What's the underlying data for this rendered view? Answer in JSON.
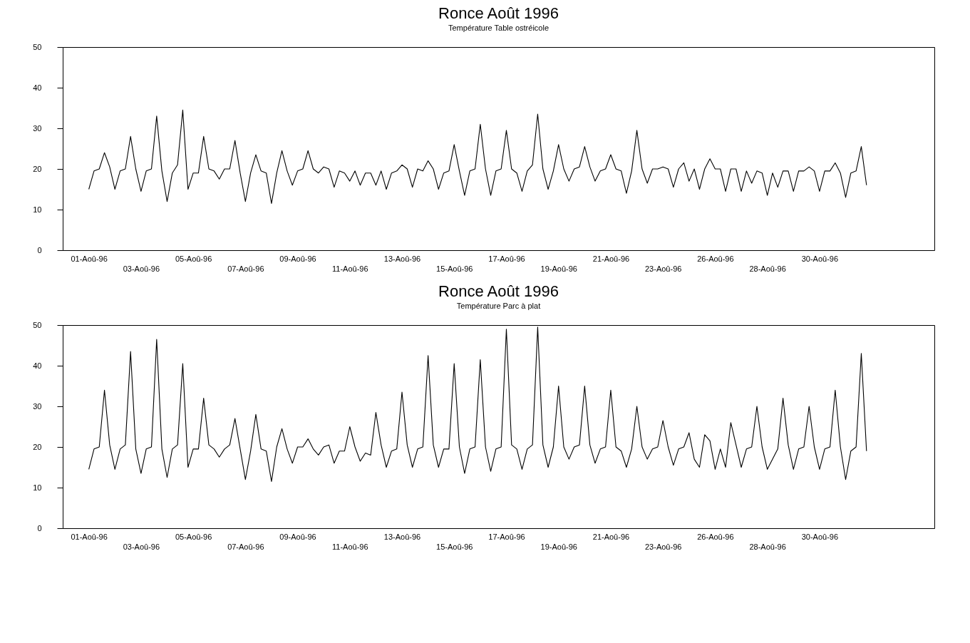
{
  "chart_data": [
    {
      "type": "line",
      "title": "Ronce Août 1996",
      "subtitle": "Température Table ostréicole",
      "color": "#000000",
      "ylim": [
        0,
        50
      ],
      "yticks": [
        0,
        10,
        20,
        30,
        40,
        50
      ],
      "categories": [
        null,
        null,
        null,
        null,
        null,
        "01-Aoû-96",
        null,
        null,
        null,
        null,
        null,
        null,
        null,
        null,
        null,
        "03-Aoû-96",
        null,
        null,
        null,
        null,
        null,
        null,
        null,
        null,
        null,
        "05-Aoû-96",
        null,
        null,
        null,
        null,
        null,
        null,
        null,
        null,
        null,
        "07-Aoû-96",
        null,
        null,
        null,
        null,
        null,
        null,
        null,
        null,
        null,
        "09-Aoû-96",
        null,
        null,
        null,
        null,
        null,
        null,
        null,
        null,
        null,
        "11-Aoû-96",
        null,
        null,
        null,
        null,
        null,
        null,
        null,
        null,
        null,
        "13-Aoû-96",
        null,
        null,
        null,
        null,
        null,
        null,
        null,
        null,
        null,
        "15-Aoû-96",
        null,
        null,
        null,
        null,
        null,
        null,
        null,
        null,
        null,
        "17-Aoû-96",
        null,
        null,
        null,
        null,
        null,
        null,
        null,
        null,
        null,
        "19-Aoû-96",
        null,
        null,
        null,
        null,
        null,
        null,
        null,
        null,
        null,
        "21-Aoû-96",
        null,
        null,
        null,
        null,
        null,
        null,
        null,
        null,
        null,
        "23-Aoû-96",
        null,
        null,
        null,
        null,
        null,
        null,
        null,
        null,
        null,
        "26-Aoû-96",
        null,
        null,
        null,
        null,
        null,
        null,
        null,
        null,
        null,
        "28-Aoû-96",
        null,
        null,
        null,
        null,
        null,
        null,
        null,
        null,
        null,
        "30-Aoû-96",
        null,
        null,
        null,
        null,
        null,
        null,
        null,
        null,
        null,
        null,
        null,
        null,
        null,
        null,
        null,
        null,
        null,
        null,
        null,
        null,
        null,
        null
      ],
      "values": [
        null,
        null,
        null,
        null,
        null,
        15,
        19.5,
        20,
        24,
        20.5,
        15,
        19.5,
        20,
        28,
        20,
        14.5,
        19.5,
        20,
        33,
        19.5,
        12,
        19,
        21,
        34.5,
        15,
        19,
        19,
        28,
        20,
        19.5,
        17.5,
        20,
        20,
        27,
        19,
        12,
        19,
        23.5,
        19.5,
        19,
        11.5,
        19,
        24.5,
        19.5,
        16,
        19.5,
        20,
        24.5,
        20,
        19,
        20.5,
        20,
        15.5,
        19.5,
        19,
        17,
        19.5,
        16,
        19,
        19,
        16,
        19.5,
        15,
        19,
        19.5,
        21,
        20,
        15.5,
        20,
        19.5,
        22,
        20,
        15,
        19,
        19.5,
        26,
        19.5,
        13.5,
        19.5,
        20,
        31,
        20,
        13.5,
        19.5,
        20,
        29.5,
        20,
        19,
        14.5,
        19.5,
        21,
        33.5,
        20,
        15,
        19.5,
        26,
        20,
        17,
        20,
        20.5,
        25.5,
        20.5,
        17,
        19.5,
        20,
        23.5,
        20,
        19.5,
        14,
        19.5,
        29.5,
        20,
        16.5,
        20,
        20,
        20.5,
        20,
        15.5,
        20,
        21.5,
        17,
        20,
        15,
        20,
        22.5,
        20,
        20,
        14.5,
        20,
        20,
        14.5,
        19.5,
        16.5,
        19.5,
        19,
        13.5,
        19,
        15.5,
        19.5,
        19.5,
        14.5,
        19.5,
        19.5,
        20.5,
        19.5,
        14.5,
        19.5,
        19.5,
        21.5,
        19,
        13,
        19,
        19.5,
        25.5,
        16,
        null,
        null,
        null,
        null,
        null,
        null,
        null,
        null,
        null,
        null,
        null,
        null,
        null
      ]
    },
    {
      "type": "line",
      "title": "Ronce Août 1996",
      "subtitle": "Température Parc à plat",
      "color": "#000000",
      "ylim": [
        0,
        50
      ],
      "yticks": [
        0,
        10,
        20,
        30,
        40,
        50
      ],
      "categories": [
        null,
        null,
        null,
        null,
        null,
        "01-Aoû-96",
        null,
        null,
        null,
        null,
        null,
        null,
        null,
        null,
        null,
        "03-Aoû-96",
        null,
        null,
        null,
        null,
        null,
        null,
        null,
        null,
        null,
        "05-Aoû-96",
        null,
        null,
        null,
        null,
        null,
        null,
        null,
        null,
        null,
        "07-Aoû-96",
        null,
        null,
        null,
        null,
        null,
        null,
        null,
        null,
        null,
        "09-Aoû-96",
        null,
        null,
        null,
        null,
        null,
        null,
        null,
        null,
        null,
        "11-Aoû-96",
        null,
        null,
        null,
        null,
        null,
        null,
        null,
        null,
        null,
        "13-Aoû-96",
        null,
        null,
        null,
        null,
        null,
        null,
        null,
        null,
        null,
        "15-Aoû-96",
        null,
        null,
        null,
        null,
        null,
        null,
        null,
        null,
        null,
        "17-Aoû-96",
        null,
        null,
        null,
        null,
        null,
        null,
        null,
        null,
        null,
        "19-Aoû-96",
        null,
        null,
        null,
        null,
        null,
        null,
        null,
        null,
        null,
        "21-Aoû-96",
        null,
        null,
        null,
        null,
        null,
        null,
        null,
        null,
        null,
        "23-Aoû-96",
        null,
        null,
        null,
        null,
        null,
        null,
        null,
        null,
        null,
        "26-Aoû-96",
        null,
        null,
        null,
        null,
        null,
        null,
        null,
        null,
        null,
        "28-Aoû-96",
        null,
        null,
        null,
        null,
        null,
        null,
        null,
        null,
        null,
        "30-Aoû-96",
        null,
        null,
        null,
        null,
        null,
        null,
        null,
        null,
        null,
        null,
        null,
        null,
        null,
        null,
        null,
        null,
        null,
        null,
        null,
        null,
        null,
        null
      ],
      "values": [
        null,
        null,
        null,
        null,
        null,
        14.5,
        19.5,
        20,
        34,
        20.5,
        14.5,
        19.5,
        20.5,
        43.5,
        19.5,
        13.5,
        19.5,
        20,
        46.5,
        19.5,
        12.5,
        19.5,
        20.5,
        40.5,
        15,
        19.5,
        19.5,
        32,
        20.5,
        19.5,
        17.5,
        19.5,
        20.5,
        27,
        19.5,
        12,
        19,
        28,
        19.5,
        19,
        11.5,
        20,
        24.5,
        19.5,
        16,
        20,
        20,
        22,
        19.5,
        18,
        20,
        20.5,
        16,
        19,
        19,
        25,
        20,
        16.5,
        18.5,
        18,
        28.5,
        20.5,
        15,
        19,
        19.5,
        33.5,
        20.5,
        15,
        19.5,
        20,
        42.5,
        20.5,
        15,
        19.5,
        19.5,
        40.5,
        20,
        13.5,
        19.5,
        20,
        41.5,
        20,
        14,
        19.5,
        20,
        49,
        20.5,
        19.5,
        14.5,
        19.5,
        20.5,
        49.5,
        20.5,
        15,
        20,
        35,
        20,
        17,
        20,
        20.5,
        35,
        20.5,
        16,
        19.5,
        20,
        34,
        20,
        19,
        15,
        19.5,
        30,
        20,
        17,
        19.5,
        20,
        26.5,
        20,
        15.5,
        19.5,
        20,
        23.5,
        17,
        15,
        23,
        21.5,
        14.5,
        19.5,
        15,
        26,
        20.5,
        15,
        19.5,
        20,
        30,
        20,
        14.5,
        17,
        19.5,
        32,
        20.5,
        14.5,
        19.5,
        20,
        30,
        20,
        14.5,
        19.5,
        20,
        34,
        20,
        12,
        19,
        20,
        43,
        19,
        null,
        null,
        null,
        null,
        null,
        null,
        null,
        null,
        null,
        null,
        null,
        null,
        null
      ]
    }
  ]
}
